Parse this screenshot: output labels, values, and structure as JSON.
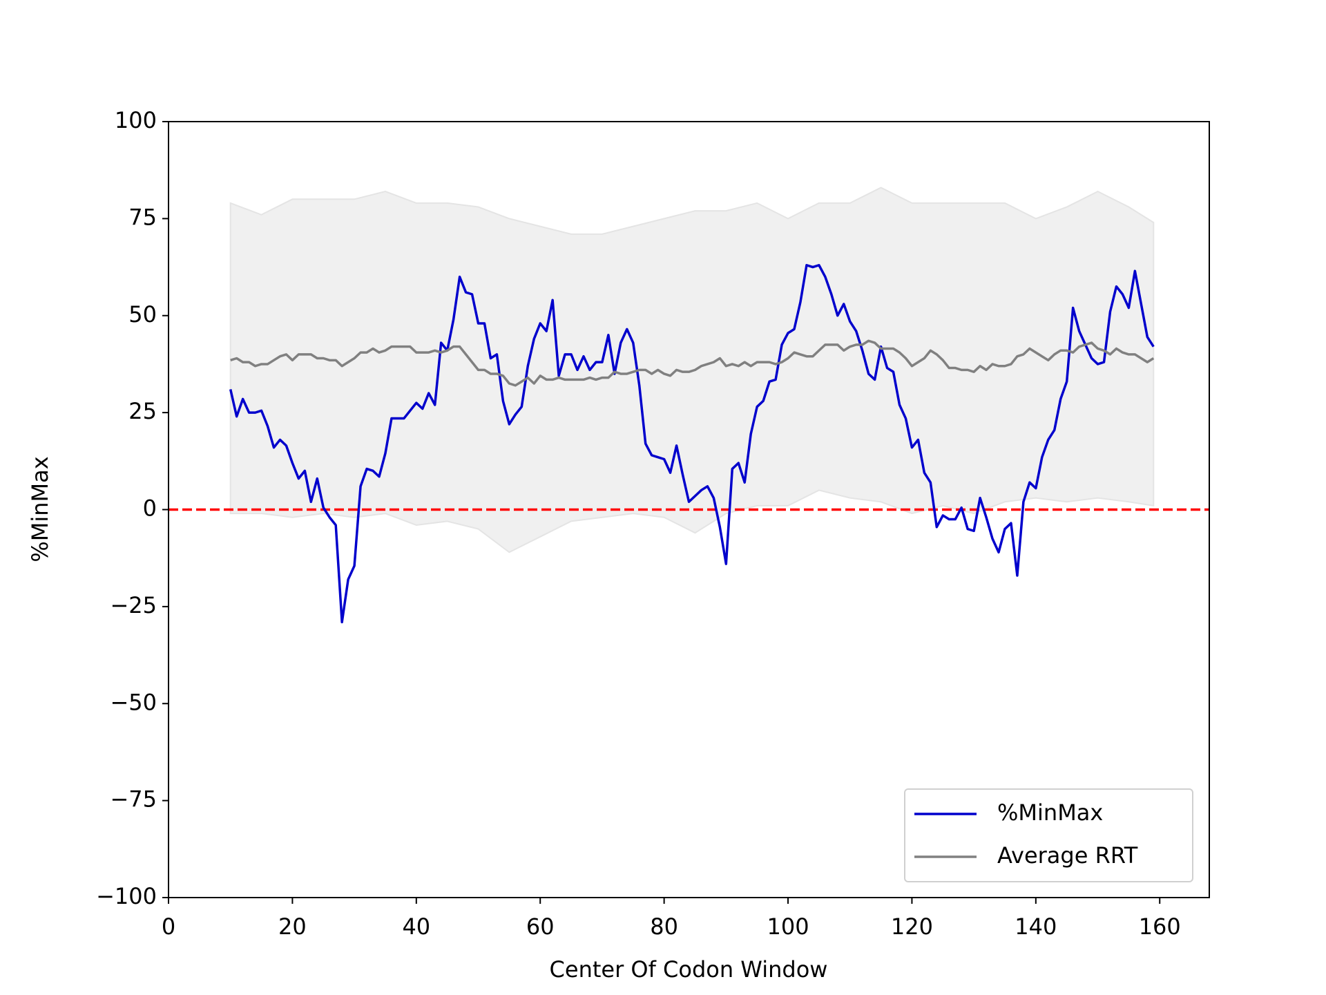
{
  "chart_data": {
    "type": "line",
    "xlabel": "Center Of Codon Window",
    "ylabel": "%MinMax",
    "xlim": [
      0,
      168
    ],
    "ylim": [
      -100,
      100
    ],
    "xticks": [
      0,
      20,
      40,
      60,
      80,
      100,
      120,
      140,
      160
    ],
    "yticks": [
      {
        "value": -100,
        "label": "−100"
      },
      {
        "value": -75,
        "label": "−75"
      },
      {
        "value": -50,
        "label": "−50"
      },
      {
        "value": -25,
        "label": "−25"
      },
      0,
      25,
      50,
      75,
      100
    ],
    "legend": "lower right",
    "hline": {
      "value": 0,
      "color": "#ff0000",
      "style": "dashed"
    },
    "band": {
      "color": "#f0f0f0",
      "x": [
        10,
        15,
        20,
        25,
        30,
        35,
        40,
        45,
        50,
        55,
        60,
        65,
        70,
        75,
        80,
        85,
        90,
        95,
        100,
        105,
        110,
        115,
        120,
        125,
        130,
        135,
        140,
        145,
        150,
        155,
        159
      ],
      "upper": [
        79,
        76,
        80,
        80,
        80,
        82,
        79,
        79,
        78,
        75,
        73,
        71,
        71,
        73,
        75,
        77,
        77,
        79,
        75,
        79,
        79,
        83,
        79,
        79,
        79,
        79,
        75,
        78,
        82,
        78,
        74
      ],
      "lower": [
        -1,
        -1,
        -2,
        -1,
        -2,
        -1,
        -4,
        -3,
        -5,
        -11,
        -7,
        -3,
        -2,
        -1,
        -2,
        -6,
        -1,
        1,
        1,
        5,
        3,
        2,
        -1,
        1,
        -1,
        2,
        3,
        2,
        3,
        2,
        1
      ]
    },
    "x": [
      10,
      11,
      12,
      13,
      14,
      15,
      16,
      17,
      18,
      19,
      20,
      21,
      22,
      23,
      24,
      25,
      26,
      27,
      28,
      29,
      30,
      31,
      32,
      33,
      34,
      35,
      36,
      37,
      38,
      39,
      40,
      41,
      42,
      43,
      44,
      45,
      46,
      47,
      48,
      49,
      50,
      51,
      52,
      53,
      54,
      55,
      56,
      57,
      58,
      59,
      60,
      61,
      62,
      63,
      64,
      65,
      66,
      67,
      68,
      69,
      70,
      71,
      72,
      73,
      74,
      75,
      76,
      77,
      78,
      79,
      80,
      81,
      82,
      83,
      84,
      85,
      86,
      87,
      88,
      89,
      90,
      91,
      92,
      93,
      94,
      95,
      96,
      97,
      98,
      99,
      100,
      101,
      102,
      103,
      104,
      105,
      106,
      107,
      108,
      109,
      110,
      111,
      112,
      113,
      114,
      115,
      116,
      117,
      118,
      119,
      120,
      121,
      122,
      123,
      124,
      125,
      126,
      127,
      128,
      129,
      130,
      131,
      132,
      133,
      134,
      135,
      136,
      137,
      138,
      139,
      140,
      141,
      142,
      143,
      144,
      145,
      146,
      147,
      148,
      149,
      150,
      151,
      152,
      153,
      154,
      155,
      156,
      157,
      158,
      159
    ],
    "series": [
      {
        "name": "%MinMax",
        "color": "#0000cc",
        "values": [
          31,
          24,
          28.5,
          25,
          25,
          25.5,
          21.5,
          16,
          18,
          16.5,
          12,
          8,
          10,
          2,
          8,
          0.5,
          -2,
          -4,
          -29,
          -18,
          -14.5,
          6,
          10.5,
          10,
          8.5,
          14.5,
          23.5,
          23.5,
          23.5,
          25.5,
          27.5,
          26,
          30,
          27,
          43,
          41,
          49,
          60,
          56,
          55.5,
          48,
          48,
          39,
          40,
          28,
          22,
          24.5,
          26.5,
          37,
          44,
          48,
          46,
          54,
          34.5,
          40,
          40,
          36,
          39.5,
          36,
          38,
          38,
          45,
          35,
          43,
          46.5,
          43,
          32,
          17,
          14,
          13.5,
          13,
          9.5,
          16.5,
          9,
          2,
          3.5,
          5,
          6,
          3,
          -4.5,
          -14,
          10.5,
          12,
          7,
          19.5,
          26.5,
          28,
          33,
          33.5,
          42.5,
          45.5,
          46.5,
          53.5,
          63,
          62.5,
          63,
          60,
          55.5,
          50,
          53,
          48.5,
          46,
          41,
          35,
          33.5,
          42,
          36.5,
          35.5,
          27,
          23.5,
          16,
          18,
          9.5,
          7,
          -4.5,
          -1.5,
          -2.5,
          -2.5,
          0.5,
          -5,
          -5.5,
          3,
          -2,
          -7.5,
          -11,
          -5,
          -3.5,
          -17,
          2,
          7,
          5.5,
          13.5,
          18,
          20.5,
          28.5,
          33,
          52,
          46,
          42.5,
          39,
          37.5,
          38,
          51,
          57.5,
          55.5,
          52,
          61.5,
          53,
          44.5,
          42
        ]
      },
      {
        "name": "Average RRT",
        "color": "#808080",
        "values": [
          38.5,
          39,
          38,
          38,
          37,
          37.5,
          37.5,
          38.5,
          39.5,
          40,
          38.5,
          40,
          40,
          40,
          39,
          39,
          38.5,
          38.5,
          37,
          38,
          39,
          40.5,
          40.5,
          41.5,
          40.5,
          41,
          42,
          42,
          42,
          42,
          40.5,
          40.5,
          40.5,
          41,
          40.5,
          41,
          42,
          42,
          40,
          38,
          36,
          36,
          35,
          35,
          34.5,
          32.5,
          32,
          33,
          34,
          32.5,
          34.5,
          33.5,
          33.5,
          34,
          33.5,
          33.5,
          33.5,
          33.5,
          34,
          33.5,
          34,
          34,
          35.5,
          35,
          35,
          35.5,
          36,
          36,
          35,
          36,
          35,
          34.5,
          36,
          35.5,
          35.5,
          36,
          37,
          37.5,
          38,
          39,
          37,
          37.5,
          37,
          38,
          37,
          38,
          38,
          38,
          37.5,
          38,
          39,
          40.5,
          40,
          39.5,
          39.5,
          41,
          42.5,
          42.5,
          42.5,
          41,
          42,
          42.5,
          42.5,
          43.5,
          43,
          41.5,
          41.5,
          41.5,
          40.5,
          39,
          37,
          38,
          39,
          41,
          40,
          38.5,
          36.5,
          36.5,
          36,
          36,
          35.5,
          37,
          36,
          37.5,
          37,
          37,
          37.5,
          39.5,
          40,
          41.5,
          40.5,
          39.5,
          38.5,
          40,
          41,
          41,
          40.5,
          42,
          42.5,
          43,
          41.5,
          41,
          40,
          41.5,
          40.5,
          40,
          40,
          39,
          38,
          39
        ]
      }
    ]
  }
}
